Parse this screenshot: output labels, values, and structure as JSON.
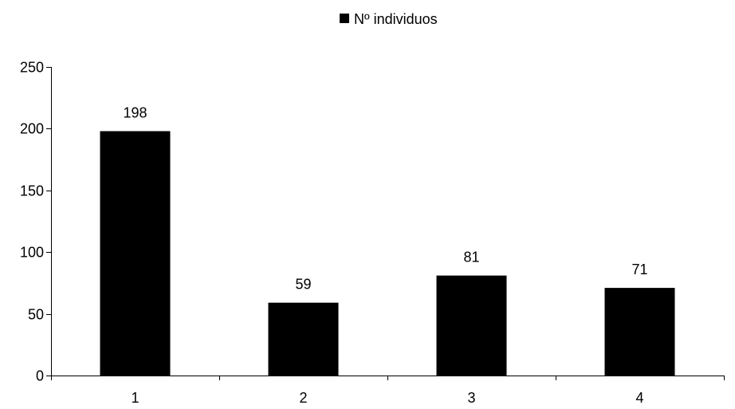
{
  "chart_data": {
    "type": "bar",
    "title": "",
    "xlabel": "",
    "ylabel": "",
    "categories": [
      "1",
      "2",
      "3",
      "4"
    ],
    "series": [
      {
        "name": "Nº individuos",
        "values": [
          198,
          59,
          81,
          71
        ],
        "color": "#000000"
      }
    ],
    "data_labels": [
      "198",
      "59",
      "81",
      "71"
    ],
    "ylim": [
      0,
      250
    ],
    "y_ticks": [
      "0",
      "50",
      "100",
      "150",
      "200",
      "250"
    ],
    "y_tick_values": [
      0,
      50,
      100,
      150,
      200,
      250
    ],
    "grid": false,
    "legend": {
      "position": "top",
      "entries": [
        "Nº individuos"
      ]
    }
  }
}
